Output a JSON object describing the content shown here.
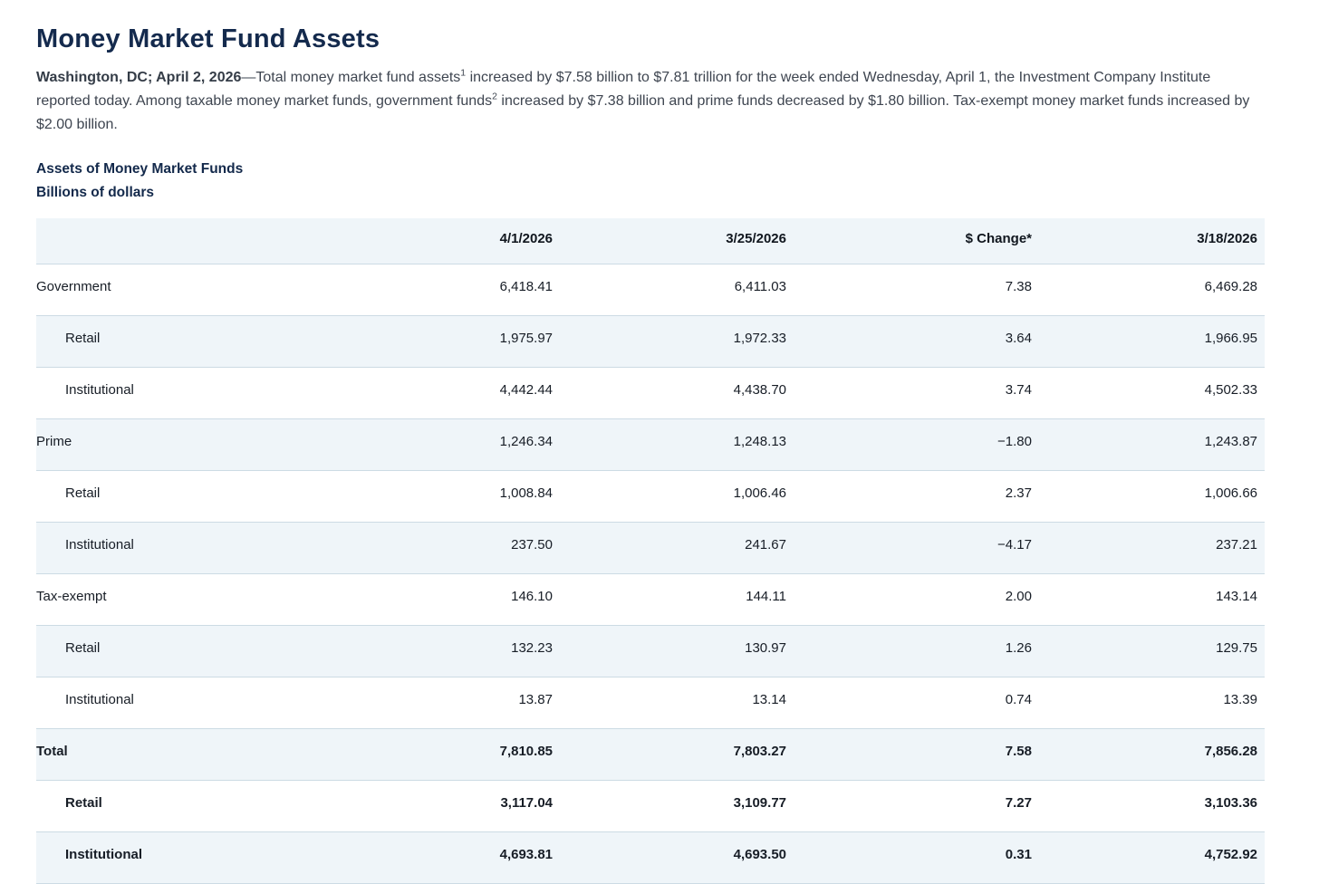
{
  "page": {
    "title": "Money Market Fund Assets",
    "intro": {
      "dateline": "Washington, DC; April 2, 2026",
      "dash": "—",
      "seg1": "Total money market fund assets",
      "footnote1": "1",
      "seg2": " increased by $7.58 billion to $7.81 trillion for the week ended Wednesday, April 1, the Investment Company Institute reported today. Among taxable money market funds, government funds",
      "footnote2": "2",
      "seg3": " increased by $7.38 billion and prime funds decreased by $1.80 billion. Tax-exempt money market funds increased by $2.00 billion."
    },
    "table_title": "Assets of Money Market Funds",
    "table_subtitle": "Billions of dollars"
  },
  "table": {
    "columns": [
      "",
      "4/1/2026",
      "3/25/2026",
      "$ Change*",
      "3/18/2026"
    ],
    "rows": [
      {
        "label": "Government",
        "indent": false,
        "bold": false,
        "values": [
          "6,418.41",
          "6,411.03",
          "7.38",
          "6,469.28"
        ]
      },
      {
        "label": "Retail",
        "indent": true,
        "bold": false,
        "values": [
          "1,975.97",
          "1,972.33",
          "3.64",
          "1,966.95"
        ]
      },
      {
        "label": "Institutional",
        "indent": true,
        "bold": false,
        "values": [
          "4,442.44",
          "4,438.70",
          "3.74",
          "4,502.33"
        ]
      },
      {
        "label": "Prime",
        "indent": false,
        "bold": false,
        "values": [
          "1,246.34",
          "1,248.13",
          "−1.80",
          "1,243.87"
        ]
      },
      {
        "label": "Retail",
        "indent": true,
        "bold": false,
        "values": [
          "1,008.84",
          "1,006.46",
          "2.37",
          "1,006.66"
        ]
      },
      {
        "label": "Institutional",
        "indent": true,
        "bold": false,
        "values": [
          "237.50",
          "241.67",
          "−4.17",
          "237.21"
        ]
      },
      {
        "label": "Tax-exempt",
        "indent": false,
        "bold": false,
        "values": [
          "146.10",
          "144.11",
          "2.00",
          "143.14"
        ]
      },
      {
        "label": "Retail",
        "indent": true,
        "bold": false,
        "values": [
          "132.23",
          "130.97",
          "1.26",
          "129.75"
        ]
      },
      {
        "label": "Institutional",
        "indent": true,
        "bold": false,
        "values": [
          "13.87",
          "13.14",
          "0.74",
          "13.39"
        ]
      },
      {
        "label": "Total",
        "indent": false,
        "bold": true,
        "values": [
          "7,810.85",
          "7,803.27",
          "7.58",
          "7,856.28"
        ]
      },
      {
        "label": "Retail",
        "indent": true,
        "bold": true,
        "values": [
          "3,117.04",
          "3,109.77",
          "7.27",
          "3,103.36"
        ]
      },
      {
        "label": "Institutional",
        "indent": true,
        "bold": true,
        "values": [
          "4,693.81",
          "4,693.50",
          "0.31",
          "4,752.92"
        ]
      }
    ]
  },
  "colors": {
    "title_navy": "#142a4d",
    "body_text": "#3e4550",
    "table_text": "#171d26",
    "row_alt_bg": "#eff5f9",
    "row_border": "#ccdbe4"
  }
}
